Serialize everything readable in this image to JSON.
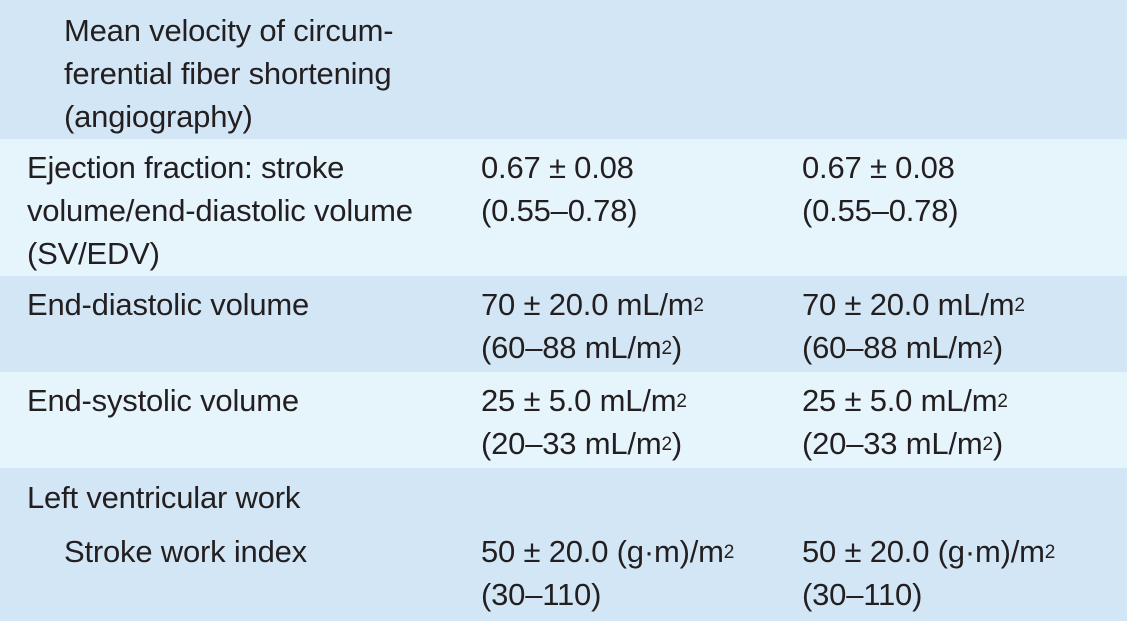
{
  "rows": [
    {
      "label": [
        "Mean velocity of circum-",
        "ferential fiber shortening",
        "(angiography)"
      ],
      "col2": [],
      "col3": []
    },
    {
      "label": [
        "Ejection fraction: stroke",
        "volume/end-diastolic volume",
        "(SV/EDV)"
      ],
      "col2": [
        "0.67 ± 0.08",
        "(0.55–0.78)"
      ],
      "col3": [
        "0.67 ± 0.08",
        "(0.55–0.78)"
      ]
    },
    {
      "label": [
        "End-diastolic volume"
      ],
      "col2": [
        "70 ± 20.0 mL/m",
        "(60–88 mL/m",
        ")"
      ],
      "col3": [
        "70 ± 20.0 mL/m",
        "(60–88 mL/m",
        ")"
      ],
      "sup": "2"
    },
    {
      "label": [
        "End-systolic volume"
      ],
      "col2": [
        "25 ± 5.0 mL/m",
        "(20–33 mL/m",
        ")"
      ],
      "col3": [
        "25 ± 5.0 mL/m",
        "(20–33 mL/m",
        ")"
      ],
      "sup": "2"
    },
    {
      "label": [
        "Left ventricular work"
      ]
    },
    {
      "label": [
        "Stroke work index"
      ],
      "col2": [
        "50 ± 20.0 (g·m)/m",
        "(30–110)"
      ],
      "col3": [
        "50 ± 20.0 (g·m)/m",
        "(30–110)"
      ],
      "sup": "2"
    }
  ]
}
